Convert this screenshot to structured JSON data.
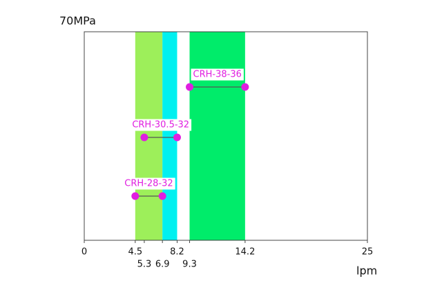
{
  "chart_data": {
    "type": "range",
    "y_label": "70MPa",
    "x_label": "lpm",
    "xlim": [
      0,
      25
    ],
    "xticks": [
      0,
      4.5,
      8.2,
      14.2,
      25
    ],
    "xticks2": [
      5.3,
      6.9,
      9.3
    ],
    "bands": [
      {
        "from": 4.5,
        "to": 6.9,
        "color": "#9def5a"
      },
      {
        "from": 6.9,
        "to": 8.2,
        "color": "#00f0f0"
      },
      {
        "from": 9.3,
        "to": 14.2,
        "color": "#00ec6a"
      }
    ],
    "ranges": [
      {
        "name": "CRH-38-36",
        "from": 9.3,
        "to": 14.2
      },
      {
        "name": "CRH-30.5-32",
        "from": 5.3,
        "to": 8.2
      },
      {
        "name": "CRH-28-32",
        "from": 4.5,
        "to": 6.9
      }
    ],
    "marker_color": "#e01ee0",
    "line_color": "#555555",
    "label_color": "#e01ee0"
  }
}
